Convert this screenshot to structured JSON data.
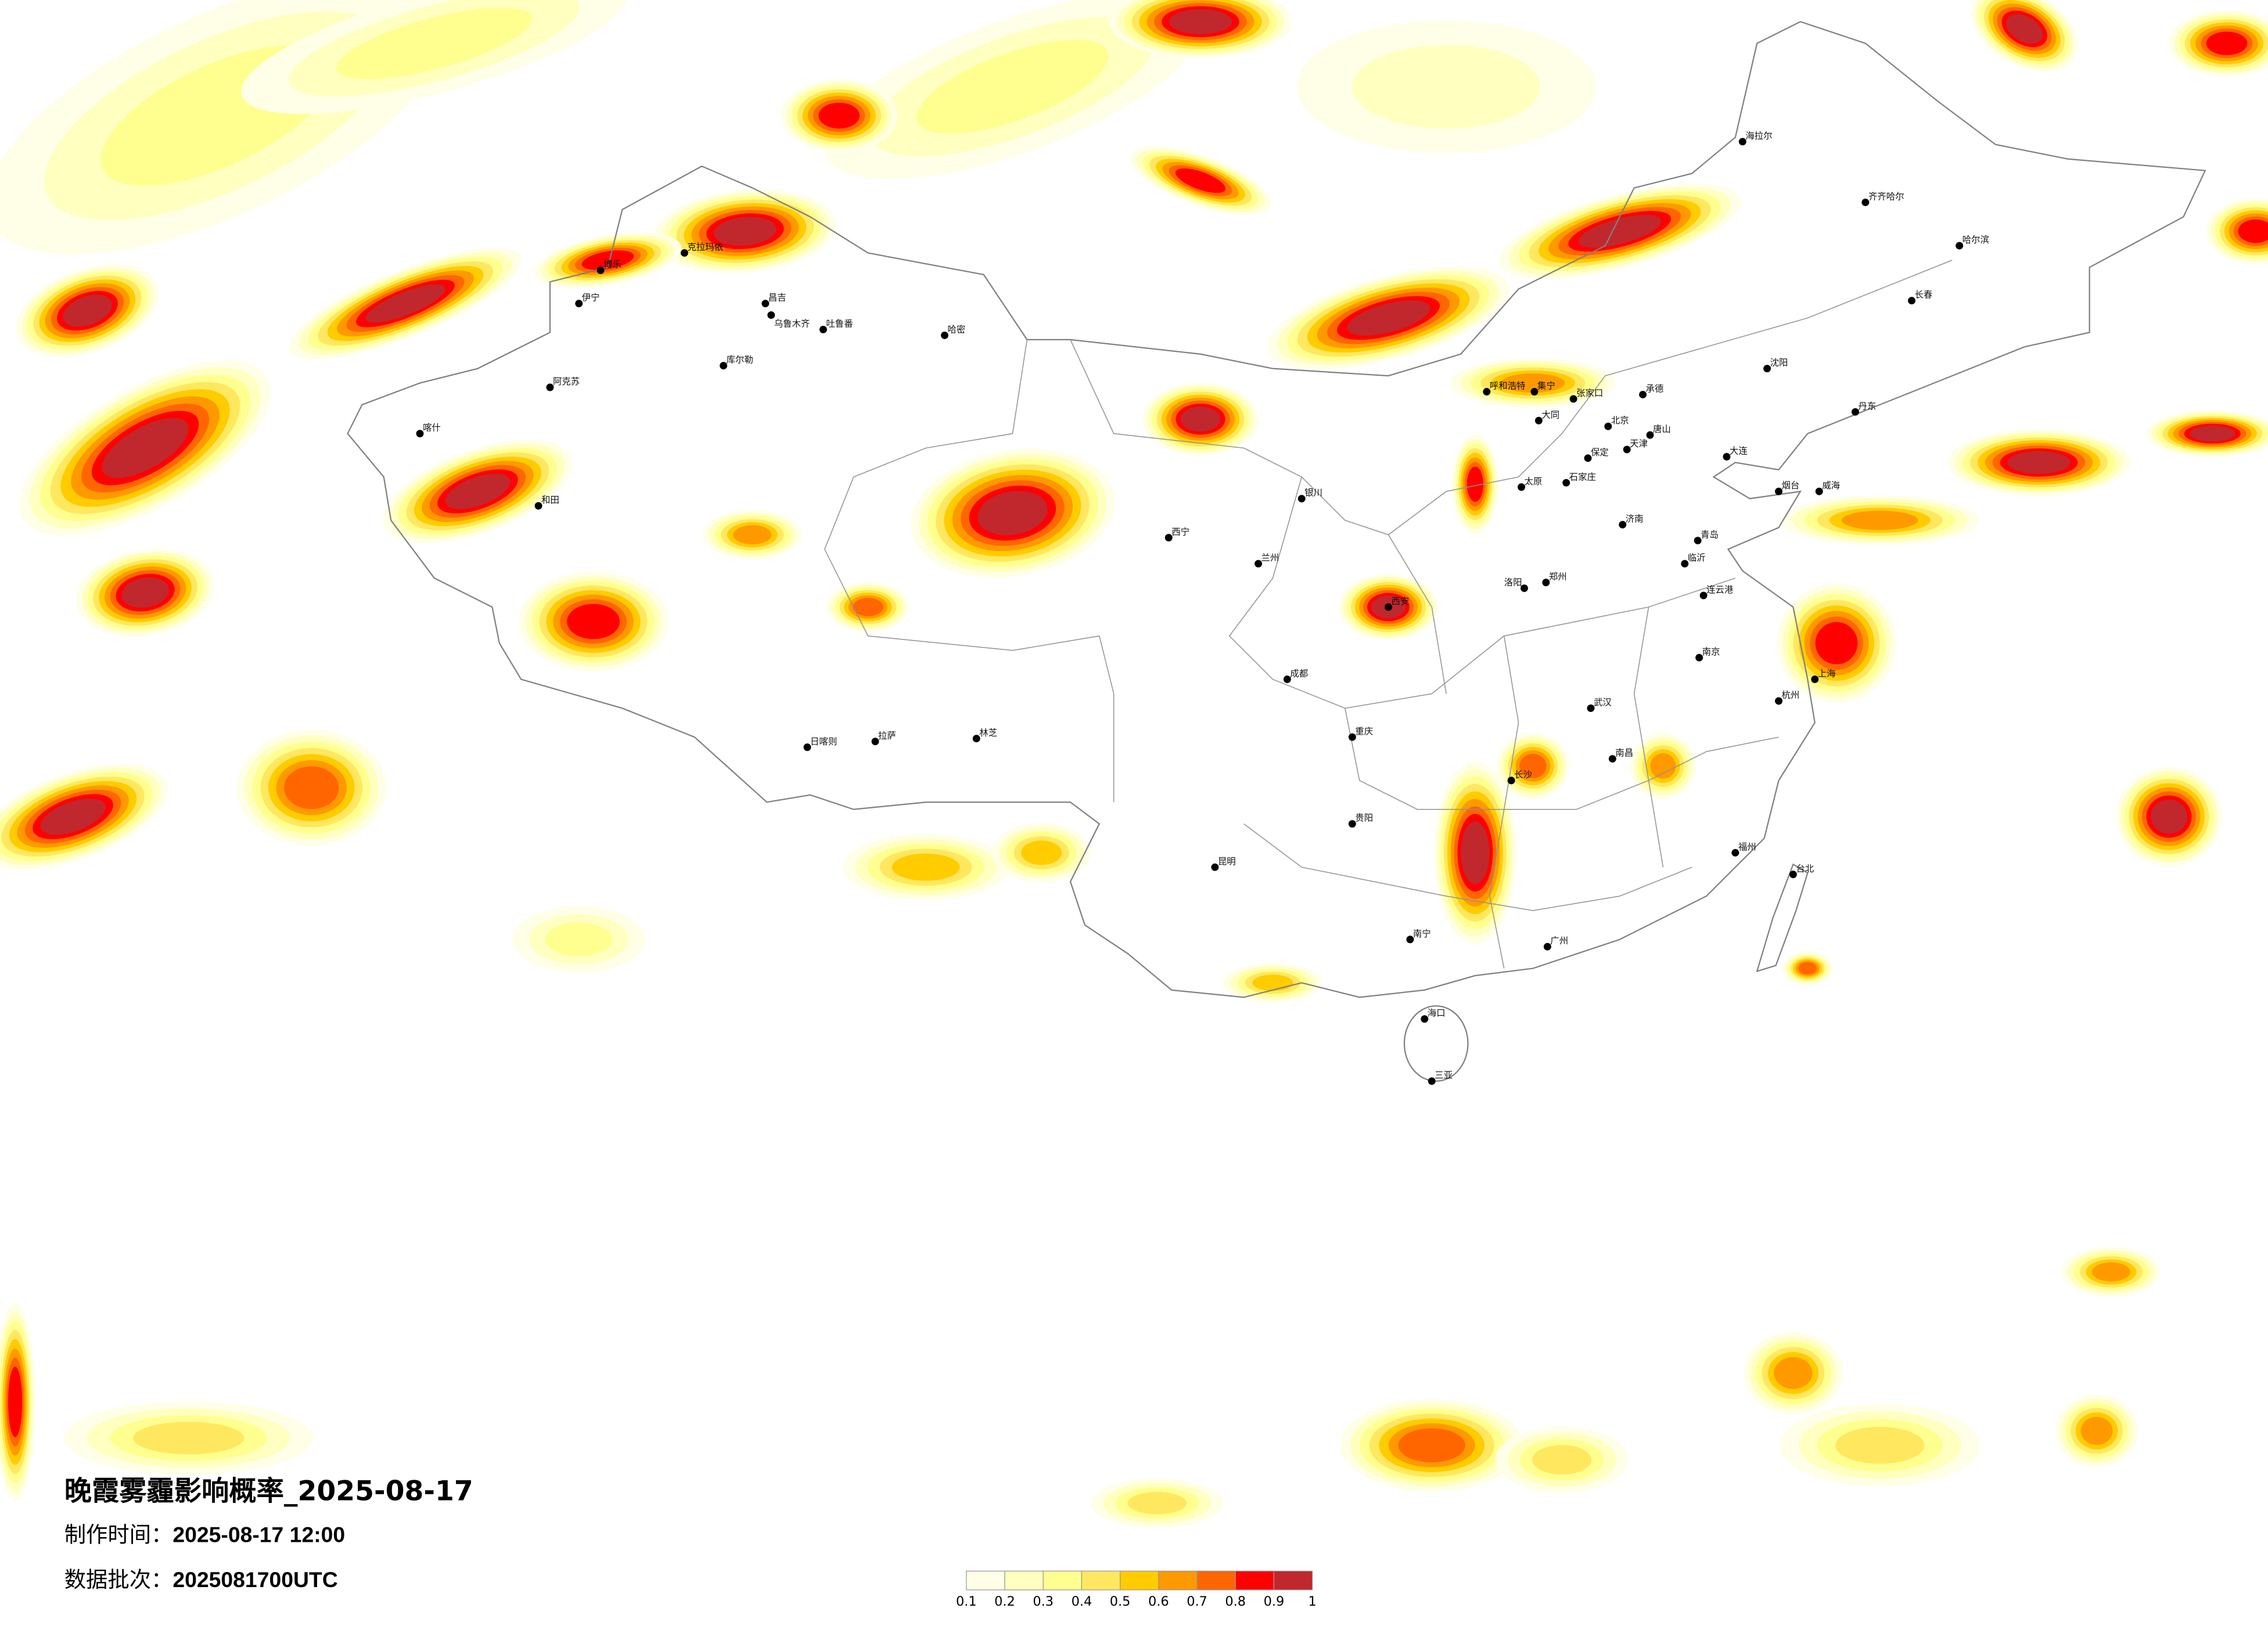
{
  "title": "晚霞雾霾影响概率_2025-08-17",
  "production_time": {
    "label": "制作时间：",
    "value": "2025-08-17 12:00"
  },
  "data_batch": {
    "label": "数据批次：",
    "value": "2025081700UTC"
  },
  "legend": {
    "labels": [
      "0.1",
      "0.2",
      "0.3",
      "0.4",
      "0.5",
      "0.6",
      "0.7",
      "0.8",
      "0.9",
      "1"
    ],
    "colors": [
      "#FFFFE8",
      "#FFFFC0",
      "#FFFF90",
      "#FFE860",
      "#FFCC00",
      "#FF9900",
      "#FF6600",
      "#FF0000",
      "#C0282D"
    ]
  },
  "map": {
    "border_color": "#808080",
    "city_dot_color": "#000000",
    "cities": [
      "克拉玛依",
      "博乐",
      "伊宁",
      "昌吉",
      "乌鲁木齐",
      "吐鲁番",
      "哈密",
      "库尔勒",
      "阿克苏",
      "喀什",
      "和田",
      "拉萨",
      "日喀则",
      "林芝",
      "西宁",
      "兰州",
      "银川",
      "呼和浩特",
      "集宁",
      "张家口",
      "北京",
      "天津",
      "唐山",
      "保定",
      "石家庄",
      "太原",
      "大同",
      "济南",
      "青岛",
      "烟台",
      "威海",
      "郑州",
      "洛阳",
      "沈阳",
      "大连",
      "丹东",
      "长春",
      "哈尔滨",
      "齐齐哈尔",
      "海拉尔",
      "西安",
      "成都",
      "重庆",
      "贵阳",
      "昆明",
      "南宁",
      "长沙",
      "武汉",
      "南昌",
      "南京",
      "上海",
      "杭州",
      "福州",
      "台北",
      "广州",
      "海口",
      "三亚",
      "连云港",
      "临沂",
      "承德"
    ]
  }
}
